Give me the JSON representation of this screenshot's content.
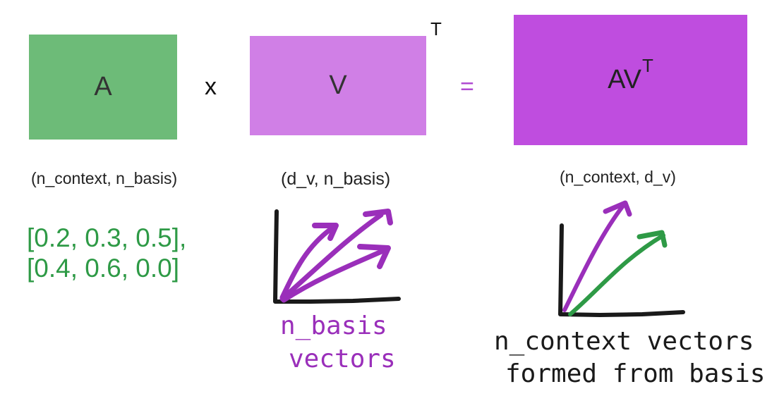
{
  "matrices": {
    "a": {
      "label": "A",
      "shape": "(n_context, n_basis)",
      "color": "#6dbb78"
    },
    "v": {
      "label": "V",
      "transpose": "T",
      "shape": "(d_v, n_basis)",
      "color": "#d07fe6"
    },
    "av": {
      "label": "AV",
      "transpose": "T",
      "shape": "(n_context, d_v)",
      "color": "#bf4ddf"
    }
  },
  "operators": {
    "multiply": "x",
    "equals": "="
  },
  "a_values": {
    "rows": [
      "[0.2, 0.3, 0.5],",
      "[0.4, 0.6, 0.0]"
    ],
    "color": "#2e9a46"
  },
  "basis_caption": {
    "line1": "n_basis",
    "line2": "vectors",
    "color": "#9a2fba"
  },
  "context_caption": {
    "line1": "n_context vectors",
    "line2": "formed from basis",
    "color": "#1a1a1a"
  },
  "vector_colors": {
    "basis": "#9a2fba",
    "context": "#2e9a46",
    "axes": "#1a1a1a"
  }
}
